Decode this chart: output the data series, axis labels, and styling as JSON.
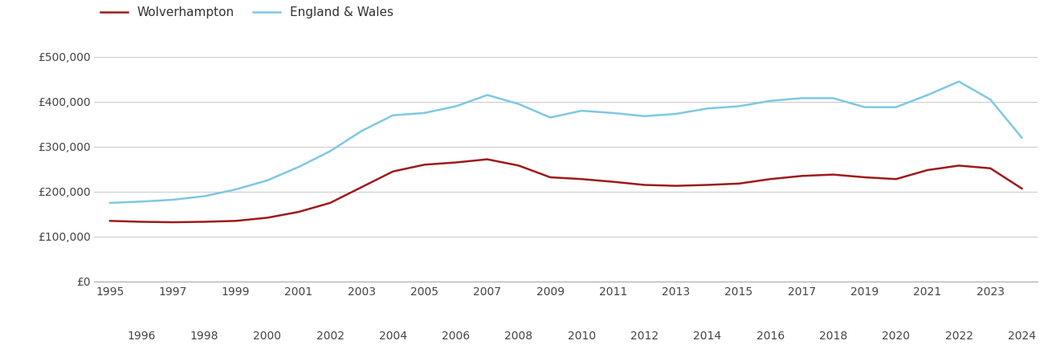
{
  "wolverhampton": {
    "years": [
      1995,
      1996,
      1997,
      1998,
      1999,
      2000,
      2001,
      2002,
      2003,
      2004,
      2005,
      2006,
      2007,
      2008,
      2009,
      2010,
      2011,
      2012,
      2013,
      2014,
      2015,
      2016,
      2017,
      2018,
      2019,
      2020,
      2021,
      2022,
      2023,
      2024
    ],
    "values": [
      135000,
      133000,
      132000,
      133000,
      135000,
      142000,
      155000,
      175000,
      210000,
      245000,
      260000,
      265000,
      272000,
      258000,
      232000,
      228000,
      222000,
      215000,
      213000,
      215000,
      218000,
      228000,
      235000,
      238000,
      232000,
      228000,
      248000,
      258000,
      252000,
      207000
    ]
  },
  "england_wales": {
    "years": [
      1995,
      1996,
      1997,
      1998,
      1999,
      2000,
      2001,
      2002,
      2003,
      2004,
      2005,
      2006,
      2007,
      2008,
      2009,
      2010,
      2011,
      2012,
      2013,
      2014,
      2015,
      2016,
      2017,
      2018,
      2019,
      2020,
      2021,
      2022,
      2023,
      2024
    ],
    "values": [
      175000,
      178000,
      182000,
      190000,
      205000,
      225000,
      255000,
      290000,
      335000,
      370000,
      375000,
      390000,
      415000,
      395000,
      365000,
      380000,
      375000,
      368000,
      373000,
      385000,
      390000,
      402000,
      408000,
      408000,
      388000,
      388000,
      415000,
      445000,
      405000,
      320000
    ]
  },
  "wolverhampton_color": "#9e1a1a",
  "england_wales_color": "#7ec8e3",
  "legend_label_wolverhampton": "Wolverhampton",
  "legend_label_ew": "England & Wales",
  "yticks": [
    0,
    100000,
    200000,
    300000,
    400000,
    500000
  ],
  "ytick_labels": [
    "£0",
    "£100,000",
    "£200,000",
    "£300,000",
    "£400,000",
    "£500,000"
  ],
  "ylim": [
    0,
    530000
  ],
  "xlim_min": 1994.5,
  "xlim_max": 2024.5,
  "bg_color": "#ffffff",
  "grid_color": "#cccccc",
  "line_width": 1.8
}
